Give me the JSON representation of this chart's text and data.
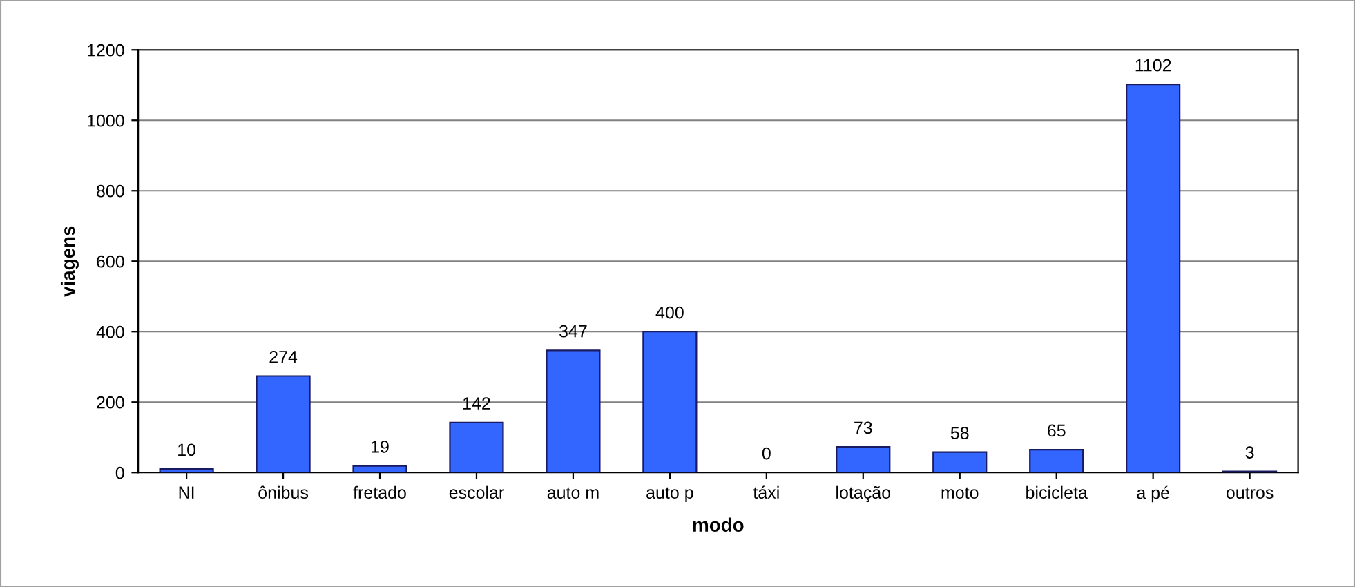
{
  "chart_data": {
    "type": "bar",
    "xlabel": "modo",
    "ylabel": "viagens",
    "categories": [
      "NI",
      "ônibus",
      "fretado",
      "escolar",
      "auto m",
      "auto p",
      "táxi",
      "lotação",
      "moto",
      "bicicleta",
      "a pé",
      "outros"
    ],
    "values": [
      10,
      274,
      19,
      142,
      347,
      400,
      0,
      73,
      58,
      65,
      1102,
      3
    ],
    "color": "#3366ff",
    "data_labels": true,
    "ylim": [
      0,
      1200
    ],
    "yticks": [
      0,
      200,
      400,
      600,
      800,
      1000,
      1200
    ],
    "grid": "y",
    "legend": false
  }
}
